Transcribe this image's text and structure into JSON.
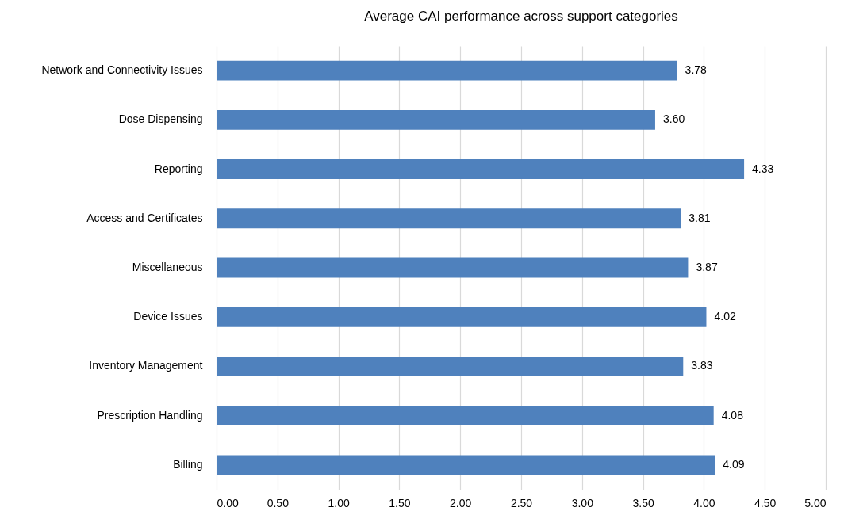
{
  "chart_data": {
    "type": "bar",
    "orientation": "horizontal",
    "title": "Average CAI performance across support categories",
    "categories": [
      "Network and Connectivity Issues",
      "Dose Dispensing",
      "Reporting",
      "Access and Certificates",
      "Miscellaneous",
      "Device Issues",
      "Inventory Management",
      "Prescription Handling",
      "Billing"
    ],
    "values": [
      3.78,
      3.6,
      4.33,
      3.81,
      3.87,
      4.02,
      3.83,
      4.08,
      4.09
    ],
    "value_labels": [
      "3.78",
      "3.60",
      "4.33",
      "3.81",
      "3.87",
      "4.02",
      "3.83",
      "4.08",
      "4.09"
    ],
    "color": "#4f81bd",
    "xlim": [
      0,
      5
    ],
    "xticks": [
      {
        "value": 0,
        "label": "0.00"
      },
      {
        "value": 0.5,
        "label": "0.50"
      },
      {
        "value": 1,
        "label": "1.00"
      },
      {
        "value": 1.5,
        "label": "1.50"
      },
      {
        "value": 2,
        "label": "2.00"
      },
      {
        "value": 2.5,
        "label": "2.50"
      },
      {
        "value": 3,
        "label": "3.00"
      },
      {
        "value": 3.5,
        "label": "3.50"
      },
      {
        "value": 4,
        "label": "4.00"
      },
      {
        "value": 4.5,
        "label": "4.50"
      },
      {
        "value": 5,
        "label": "5.00"
      }
    ],
    "grid": "x"
  }
}
